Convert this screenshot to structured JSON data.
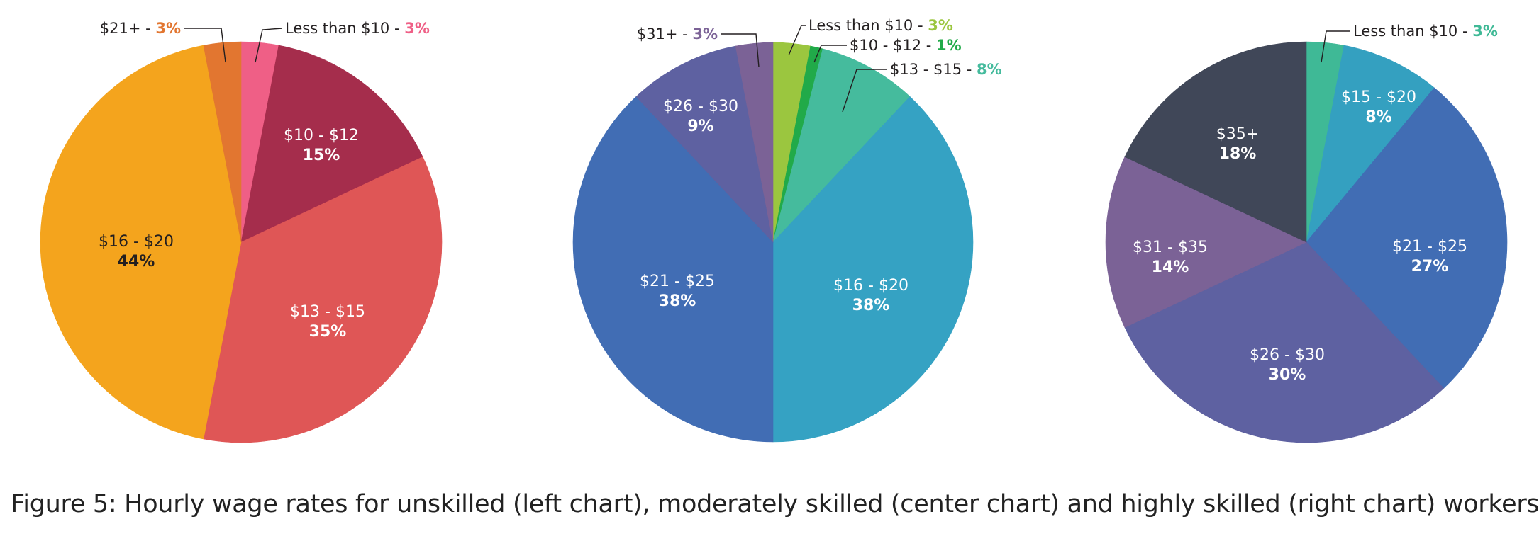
{
  "caption": "Figure 5: Hourly wage rates for unskilled (left chart), moderately skilled (center chart) and highly skilled (right chart) workers",
  "chart_data": [
    {
      "type": "pie",
      "slices": [
        {
          "label": "Less than $10",
          "value": 3,
          "value_label": "3%",
          "color": "#ef5f86",
          "label_style": "outside"
        },
        {
          "label": "$10 - $12",
          "value": 15,
          "value_label": "15%",
          "color": "#a52d4c",
          "label_style": "inside"
        },
        {
          "label": "$13 - $15",
          "value": 35,
          "value_label": "35%",
          "color": "#df5656",
          "label_style": "inside"
        },
        {
          "label": "$16 - $20",
          "value": 44,
          "value_label": "44%",
          "color": "#f4a41d",
          "label_style": "inside",
          "dark_text": true
        },
        {
          "label": "$21+",
          "value": 3,
          "value_label": "3%",
          "color": "#e27630",
          "label_style": "outside"
        }
      ]
    },
    {
      "type": "pie",
      "slices": [
        {
          "label": "Less than $10",
          "value": 3,
          "value_label": "3%",
          "color": "#9bc63f",
          "label_style": "outside"
        },
        {
          "label": "$10 - $12",
          "value": 1,
          "value_label": "1%",
          "color": "#21aa49",
          "label_style": "outside"
        },
        {
          "label": "$13 - $15",
          "value": 8,
          "value_label": "8%",
          "color": "#45bb9d",
          "label_style": "outside"
        },
        {
          "label": "$16 - $20",
          "value": 38,
          "value_label": "38%",
          "color": "#35a2c3",
          "label_style": "inside"
        },
        {
          "label": "$21 - $25",
          "value": 38,
          "value_label": "38%",
          "color": "#416db4",
          "label_style": "inside"
        },
        {
          "label": "$26 - $30",
          "value": 9,
          "value_label": "9%",
          "color": "#5e61a1",
          "label_style": "inside"
        },
        {
          "label": "$31+",
          "value": 3,
          "value_label": "3%",
          "color": "#7b6296",
          "label_style": "outside"
        }
      ]
    },
    {
      "type": "pie",
      "slices": [
        {
          "label": "Less than $10",
          "value": 3,
          "value_label": "3%",
          "color": "#3fb996",
          "label_style": "outside"
        },
        {
          "label": "$15 - $20",
          "value": 8,
          "value_label": "8%",
          "color": "#34a0c0",
          "label_style": "inside"
        },
        {
          "label": "$21 - $25",
          "value": 27,
          "value_label": "27%",
          "color": "#416db4",
          "label_style": "inside"
        },
        {
          "label": "$26 - $30",
          "value": 30,
          "value_label": "30%",
          "color": "#5e61a1",
          "label_style": "inside"
        },
        {
          "label": "$31 - $35",
          "value": 14,
          "value_label": "14%",
          "color": "#7b6296",
          "label_style": "inside"
        },
        {
          "label": "$35+",
          "value": 18,
          "value_label": "18%",
          "color": "#404758",
          "label_style": "inside"
        }
      ]
    }
  ]
}
